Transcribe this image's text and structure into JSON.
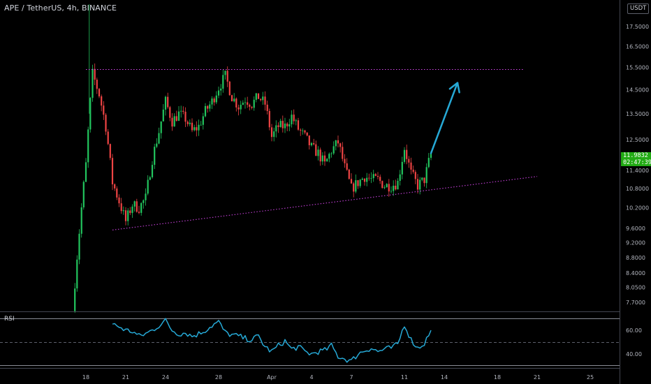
{
  "header": {
    "symbol_title": "APE / TetherUS, 4h, BINANCE",
    "currency": "USDT"
  },
  "indicator": {
    "label": "RSI"
  },
  "last_price": {
    "value": "11.9832",
    "countdown": "02:47:39"
  },
  "colors": {
    "up": "#22c55e",
    "down": "#ef4444",
    "rsi": "#26a9d6",
    "trendline": "#d946ef",
    "arrow": "#26a9d6",
    "price_tag": "#22ab14"
  },
  "chart_data": [
    {
      "type": "candlestick",
      "title": "APE / TetherUS, 4h, BINANCE",
      "y_scale": "log",
      "ylim": [
        7.45,
        19.0
      ],
      "x_dates": [
        "Mar 18",
        "Mar 21",
        "Mar 24",
        "Mar 28",
        "Apr 1",
        "Apr 4",
        "Apr 7",
        "Apr 11",
        "Apr 14",
        "Apr 18",
        "Apr 21",
        "Apr 25"
      ],
      "x_tick_labels": [
        "18",
        "21",
        "24",
        "28",
        "Apr",
        "4",
        "7",
        "11",
        "14",
        "18",
        "21",
        "25"
      ],
      "y_tick_labels": [
        "17.5000",
        "16.5000",
        "15.5000",
        "14.5000",
        "13.5000",
        "12.5000",
        "11.4000",
        "10.8000",
        "10.2000",
        "9.6000",
        "9.2000",
        "8.8000",
        "8.4000",
        "8.0500",
        "7.7000"
      ],
      "y_tick_values": [
        17.5,
        16.5,
        15.5,
        14.5,
        13.5,
        12.5,
        11.4,
        10.8,
        10.2,
        9.6,
        9.2,
        8.8,
        8.4,
        8.05,
        7.7
      ],
      "price_keyframes": [
        [
          "Mar 17 00:00",
          7.5
        ],
        [
          "Mar 17 12:00",
          9.5
        ],
        [
          "Mar 18 00:00",
          11.6
        ],
        [
          "Mar 18 12:00",
          15.2
        ],
        [
          "Mar 19 00:00",
          14.3
        ],
        [
          "Mar 19 12:00",
          13.0
        ],
        [
          "Mar 20 00:00",
          11.0
        ],
        [
          "Mar 20 12:00",
          10.4
        ],
        [
          "Mar 21 00:00",
          9.8
        ],
        [
          "Mar 21 12:00",
          10.3
        ],
        [
          "Mar 22 00:00",
          10.2
        ],
        [
          "Mar 22 12:00",
          10.5
        ],
        [
          "Mar 23 00:00",
          11.8
        ],
        [
          "Mar 23 12:00",
          12.8
        ],
        [
          "Mar 24 00:00",
          14.0
        ],
        [
          "Mar 24 12:00",
          13.2
        ],
        [
          "Mar 25 00:00",
          13.5
        ],
        [
          "Mar 25 12:00",
          13.3
        ],
        [
          "Mar 26 00:00",
          12.8
        ],
        [
          "Mar 26 12:00",
          13.0
        ],
        [
          "Mar 27 00:00",
          13.6
        ],
        [
          "Mar 27 12:00",
          14.0
        ],
        [
          "Mar 28 00:00",
          14.6
        ],
        [
          "Mar 28 12:00",
          15.1
        ],
        [
          "Mar 29 00:00",
          14.2
        ],
        [
          "Mar 29 12:00",
          13.8
        ],
        [
          "Mar 30 00:00",
          14.1
        ],
        [
          "Mar 30 12:00",
          13.9
        ],
        [
          "Mar 31 00:00",
          14.2
        ],
        [
          "Mar 31 12:00",
          13.9
        ],
        [
          "Apr 1 00:00",
          12.6
        ],
        [
          "Apr 1 12:00",
          13.0
        ],
        [
          "Apr 2 00:00",
          13.0
        ],
        [
          "Apr 2 12:00",
          13.4
        ],
        [
          "Apr 3 00:00",
          12.9
        ],
        [
          "Apr 3 12:00",
          12.6
        ],
        [
          "Apr 4 00:00",
          12.2
        ],
        [
          "Apr 4 12:00",
          12.0
        ],
        [
          "Apr 5 00:00",
          11.6
        ],
        [
          "Apr 5 12:00",
          12.1
        ],
        [
          "Apr 6 00:00",
          12.4
        ],
        [
          "Apr 6 12:00",
          11.5
        ],
        [
          "Apr 7 00:00",
          10.8
        ],
        [
          "Apr 7 12:00",
          11.0
        ],
        [
          "Apr 8 00:00",
          11.2
        ],
        [
          "Apr 8 12:00",
          11.1
        ],
        [
          "Apr 9 00:00",
          11.1
        ],
        [
          "Apr 9 12:00",
          10.9
        ],
        [
          "Apr 10 00:00",
          10.9
        ],
        [
          "Apr 10 12:00",
          11.0
        ],
        [
          "Apr 11 00:00",
          12.2
        ],
        [
          "Apr 11 12:00",
          11.3
        ],
        [
          "Apr 12 00:00",
          10.9
        ],
        [
          "Apr 12 12:00",
          11.1
        ],
        [
          "Apr 13 00:00",
          11.98
        ]
      ],
      "annotations": [
        {
          "type": "horizontal-line",
          "style": "dotted",
          "value": 15.4,
          "from": "Mar 18",
          "to": "Apr 20"
        },
        {
          "type": "trend-line",
          "style": "dotted",
          "from": [
            "Mar 20",
            9.55
          ],
          "to": [
            "Apr 21",
            11.2
          ]
        },
        {
          "type": "arrow",
          "from": [
            "Apr 13",
            12.0
          ],
          "to": [
            "Apr 15",
            14.8
          ]
        }
      ],
      "last_value": 11.9832
    },
    {
      "type": "line",
      "title": "RSI",
      "y_tick_labels": [
        "60.00",
        "40.00"
      ],
      "y_tick_values": [
        60,
        40
      ],
      "ylim": [
        30,
        80
      ],
      "reference_line": 50,
      "series": [
        {
          "name": "RSI",
          "keyframes": [
            [
              "Mar 20 00:00",
              65
            ],
            [
              "Mar 20 12:00",
              63
            ],
            [
              "Mar 21 00:00",
              60
            ],
            [
              "Mar 21 12:00",
              59
            ],
            [
              "Mar 22 00:00",
              55
            ],
            [
              "Mar 22 12:00",
              57
            ],
            [
              "Mar 23 00:00",
              60
            ],
            [
              "Mar 23 12:00",
              64
            ],
            [
              "Mar 24 00:00",
              68
            ],
            [
              "Mar 24 12:00",
              60
            ],
            [
              "Mar 25 00:00",
              57
            ],
            [
              "Mar 25 12:00",
              58
            ],
            [
              "Mar 26 00:00",
              55
            ],
            [
              "Mar 26 12:00",
              57
            ],
            [
              "Mar 27 00:00",
              60
            ],
            [
              "Mar 27 12:00",
              64
            ],
            [
              "Mar 28 00:00",
              67
            ],
            [
              "Mar 28 12:00",
              58
            ],
            [
              "Mar 29 00:00",
              56
            ],
            [
              "Mar 29 12:00",
              55
            ],
            [
              "Mar 30 00:00",
              53
            ],
            [
              "Mar 30 12:00",
              52
            ],
            [
              "Mar 31 00:00",
              55
            ],
            [
              "Mar 31 12:00",
              46
            ],
            [
              "Apr 1 00:00",
              42
            ],
            [
              "Apr 1 12:00",
              47
            ],
            [
              "Apr 2 00:00",
              51
            ],
            [
              "Apr 2 12:00",
              44
            ],
            [
              "Apr 3 00:00",
              46
            ],
            [
              "Apr 3 12:00",
              42
            ],
            [
              "Apr 4 00:00",
              40
            ],
            [
              "Apr 4 12:00",
              42
            ],
            [
              "Apr 5 00:00",
              43
            ],
            [
              "Apr 5 12:00",
              47
            ],
            [
              "Apr 6 00:00",
              38
            ],
            [
              "Apr 6 12:00",
              36
            ],
            [
              "Apr 7 00:00",
              34
            ],
            [
              "Apr 7 12:00",
              40
            ],
            [
              "Apr 8 00:00",
              43
            ],
            [
              "Apr 8 12:00",
              45
            ],
            [
              "Apr 9 00:00",
              42
            ],
            [
              "Apr 9 12:00",
              44
            ],
            [
              "Apr 10 00:00",
              45
            ],
            [
              "Apr 10 12:00",
              48
            ],
            [
              "Apr 11 00:00",
              65
            ],
            [
              "Apr 11 12:00",
              52
            ],
            [
              "Apr 12 00:00",
              45
            ],
            [
              "Apr 12 12:00",
              49
            ],
            [
              "Apr 13 00:00",
              60
            ]
          ]
        }
      ]
    }
  ]
}
